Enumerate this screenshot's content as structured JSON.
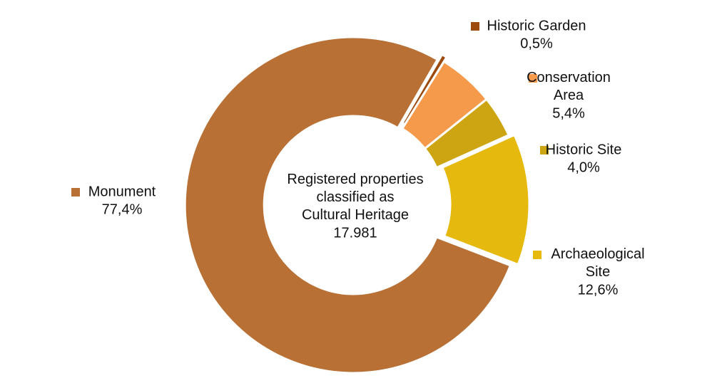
{
  "chart_data": {
    "type": "donut",
    "categories": [
      "Historic Garden",
      "Conservation Area",
      "Historic Site",
      "Archaeological Site",
      "Monument"
    ],
    "values": [
      0.5,
      5.4,
      4.0,
      12.6,
      77.4
    ],
    "value_labels": [
      "0,5%",
      "5,4%",
      "4,0%",
      "12,6%",
      "77,4%"
    ],
    "colors": [
      "#9c4a0d",
      "#f59a4b",
      "#cda512",
      "#e6b90e",
      "#b87035"
    ],
    "center_text": "Registered properties classified as Cultural Heritage",
    "total": {
      "value": 17981,
      "label": "17.981"
    }
  }
}
